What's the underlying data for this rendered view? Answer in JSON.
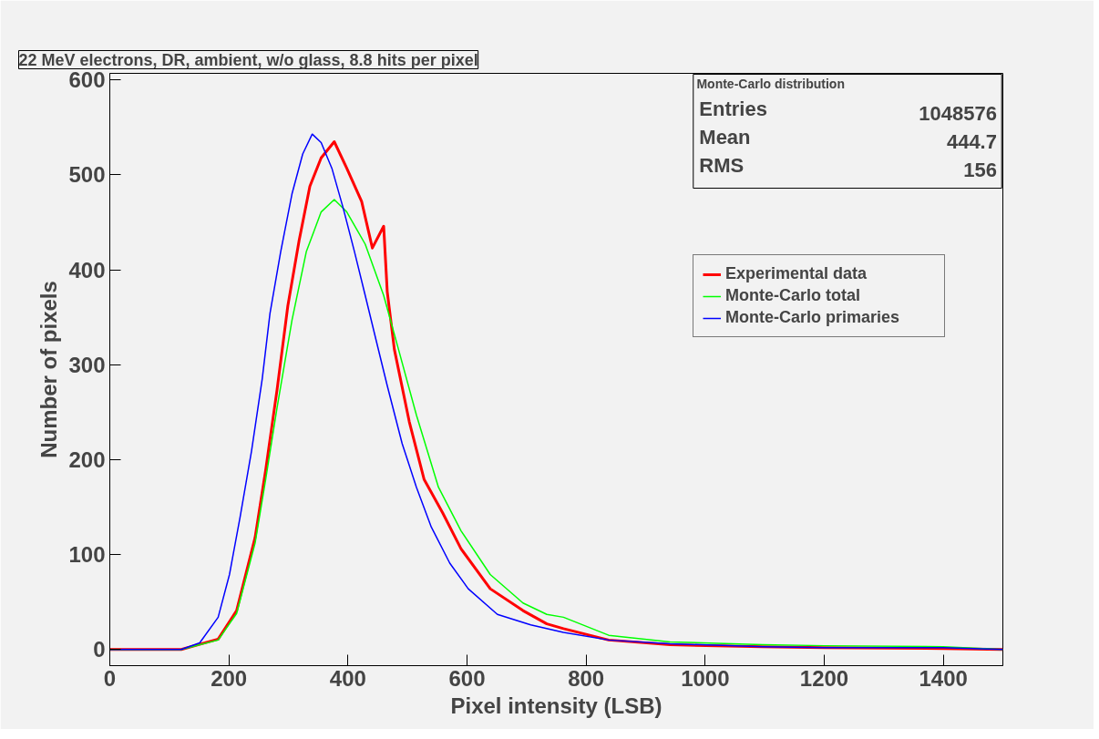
{
  "chart_data": {
    "type": "line",
    "title": "22 MeV electrons, DR, ambient, w/o glass, 8.8 hits per pixel",
    "xlabel": "Pixel intensity (LSB)",
    "ylabel": "Number of pixels",
    "xlim": [
      0,
      1500
    ],
    "ylim": [
      -17,
      607
    ],
    "xticks": [
      0,
      200,
      400,
      600,
      800,
      1000,
      1200,
      1400
    ],
    "yticks": [
      0,
      100,
      200,
      300,
      400,
      500,
      600
    ],
    "grid": false,
    "legend": "top right",
    "annotations": [
      "Monte-Carlo distribution",
      "Entries 1048576",
      "Mean 444.7",
      "RMS 156"
    ],
    "series": [
      {
        "name": "Experimental data",
        "color": "#ff0000",
        "x": [
          0,
          120,
          182,
          213,
          244,
          262,
          281,
          299,
          318,
          336,
          355,
          377,
          398,
          423,
          441,
          460,
          466,
          478,
          503,
          528,
          559,
          590,
          639,
          694,
          734,
          762,
          838,
          941,
          1096,
          1200,
          1400,
          1500
        ],
        "values": [
          0,
          0,
          11,
          41,
          118,
          190,
          274,
          362,
          431,
          488,
          518,
          535,
          507,
          472,
          423,
          446,
          377,
          316,
          240,
          179,
          144,
          106,
          64,
          41,
          27,
          22,
          10,
          5,
          3,
          2,
          1,
          0
        ]
      },
      {
        "name": "Monte-Carlo total",
        "color": "#00ff00",
        "x": [
          0,
          120,
          182,
          213,
          244,
          262,
          281,
          306,
          330,
          355,
          377,
          398,
          429,
          460,
          485,
          515,
          552,
          590,
          639,
          694,
          734,
          762,
          838,
          941,
          1096,
          1200,
          1400,
          1500
        ],
        "values": [
          0,
          0,
          10,
          38,
          112,
          180,
          255,
          347,
          419,
          461,
          474,
          461,
          427,
          373,
          316,
          247,
          171,
          125,
          79,
          49,
          37,
          34,
          15,
          8,
          5,
          4,
          3,
          0
        ]
      },
      {
        "name": "Monte-Carlo primaries",
        "color": "#0000ff",
        "x": [
          0,
          120,
          151,
          182,
          201,
          219,
          238,
          256,
          269,
          287,
          306,
          324,
          340,
          355,
          373,
          392,
          411,
          429,
          448,
          466,
          491,
          515,
          540,
          571,
          602,
          651,
          707,
          762,
          838,
          941,
          1096,
          1200,
          1400,
          1500
        ],
        "values": [
          0,
          0,
          7,
          34,
          79,
          140,
          209,
          285,
          354,
          419,
          480,
          522,
          543,
          534,
          507,
          465,
          419,
          373,
          324,
          278,
          217,
          171,
          129,
          91,
          64,
          37,
          26,
          18,
          10,
          6,
          3,
          2,
          2,
          0
        ]
      }
    ]
  }
}
